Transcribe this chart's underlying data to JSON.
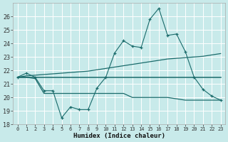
{
  "xlabel": "Humidex (Indice chaleur)",
  "xlim": [
    -0.5,
    23.5
  ],
  "ylim": [
    18,
    27
  ],
  "yticks": [
    18,
    19,
    20,
    21,
    22,
    23,
    24,
    25,
    26
  ],
  "xticks": [
    0,
    1,
    2,
    3,
    4,
    5,
    6,
    7,
    8,
    9,
    10,
    11,
    12,
    13,
    14,
    15,
    16,
    17,
    18,
    19,
    20,
    21,
    22,
    23
  ],
  "bg_color": "#c8eaea",
  "grid_color": "#ffffff",
  "line_color": "#1a6b6b",
  "x": [
    0,
    1,
    2,
    3,
    4,
    5,
    6,
    7,
    8,
    9,
    10,
    11,
    12,
    13,
    14,
    15,
    16,
    17,
    18,
    19,
    20,
    21,
    22,
    23
  ],
  "line1_y": [
    21.5,
    21.8,
    21.5,
    20.5,
    20.5,
    18.5,
    19.3,
    19.1,
    19.1,
    20.7,
    21.5,
    23.3,
    24.2,
    23.8,
    23.7,
    25.8,
    26.6,
    24.6,
    24.7,
    23.4,
    21.5,
    20.6,
    20.1,
    19.8
  ],
  "line2_y": [
    21.5,
    21.5,
    21.5,
    21.5,
    21.5,
    21.5,
    21.5,
    21.5,
    21.5,
    21.5,
    21.5,
    21.5,
    21.5,
    21.5,
    21.5,
    21.5,
    21.5,
    21.5,
    21.5,
    21.5,
    21.5,
    21.5,
    21.5,
    21.5
  ],
  "line3_y": [
    21.5,
    21.6,
    21.65,
    21.7,
    21.75,
    21.8,
    21.85,
    21.9,
    21.95,
    22.05,
    22.15,
    22.25,
    22.35,
    22.45,
    22.55,
    22.65,
    22.75,
    22.85,
    22.9,
    22.95,
    23.0,
    23.05,
    23.15,
    23.25
  ],
  "line5_y": [
    21.5,
    21.5,
    21.4,
    20.3,
    20.3,
    20.3,
    20.3,
    20.3,
    20.3,
    20.3,
    20.3,
    20.3,
    20.3,
    20.0,
    20.0,
    20.0,
    20.0,
    20.0,
    19.9,
    19.8,
    19.8,
    19.8,
    19.8,
    19.8
  ]
}
